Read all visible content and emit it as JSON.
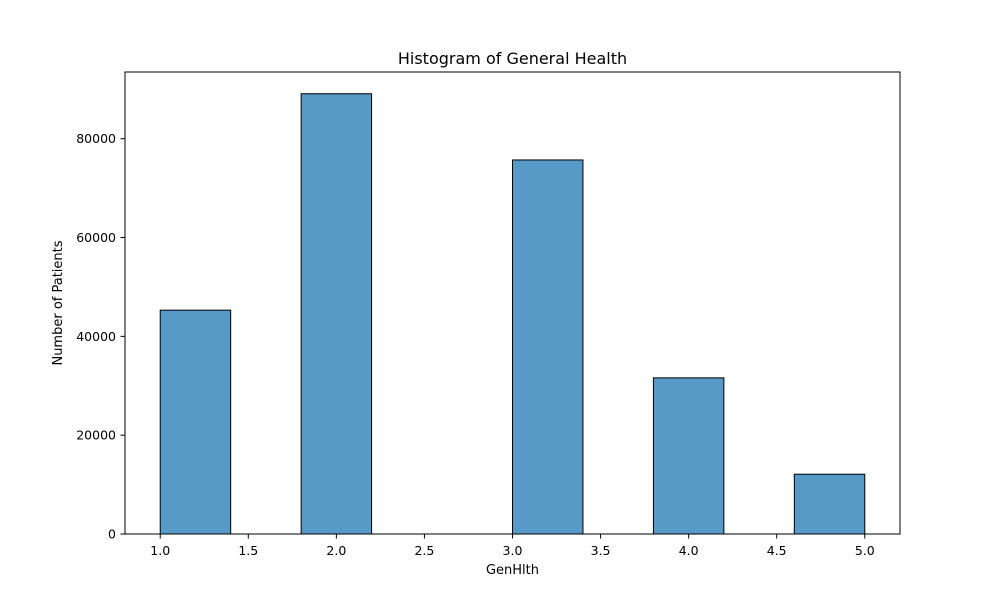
{
  "chart_data": {
    "type": "bar",
    "title": "Histogram of General Health",
    "xlabel": "GenHlth",
    "ylabel": "Number of Patients",
    "xlim": [
      0.8,
      5.2
    ],
    "ylim": [
      0,
      93500
    ],
    "bar_color": "#5799C7",
    "edge_color": "#000000",
    "grid": false,
    "x_ticks": [
      1.0,
      1.5,
      2.0,
      2.5,
      3.0,
      3.5,
      4.0,
      4.5,
      5.0
    ],
    "x_tick_labels": [
      "1.0",
      "1.5",
      "2.0",
      "2.5",
      "3.0",
      "3.5",
      "4.0",
      "4.5",
      "5.0"
    ],
    "y_ticks": [
      0,
      20000,
      40000,
      60000,
      80000
    ],
    "y_tick_labels": [
      "0",
      "20000",
      "40000",
      "60000",
      "80000"
    ],
    "bins": [
      {
        "x_start": 1.0,
        "x_end": 1.4,
        "value": 45300
      },
      {
        "x_start": 1.4,
        "x_end": 1.8,
        "value": 0
      },
      {
        "x_start": 1.8,
        "x_end": 2.2,
        "value": 89100
      },
      {
        "x_start": 2.2,
        "x_end": 2.6,
        "value": 0
      },
      {
        "x_start": 2.6,
        "x_end": 3.0,
        "value": 0
      },
      {
        "x_start": 3.0,
        "x_end": 3.4,
        "value": 75700
      },
      {
        "x_start": 3.4,
        "x_end": 3.8,
        "value": 0
      },
      {
        "x_start": 3.8,
        "x_end": 4.2,
        "value": 31600
      },
      {
        "x_start": 4.2,
        "x_end": 4.6,
        "value": 0
      },
      {
        "x_start": 4.6,
        "x_end": 5.0,
        "value": 12100
      }
    ]
  }
}
